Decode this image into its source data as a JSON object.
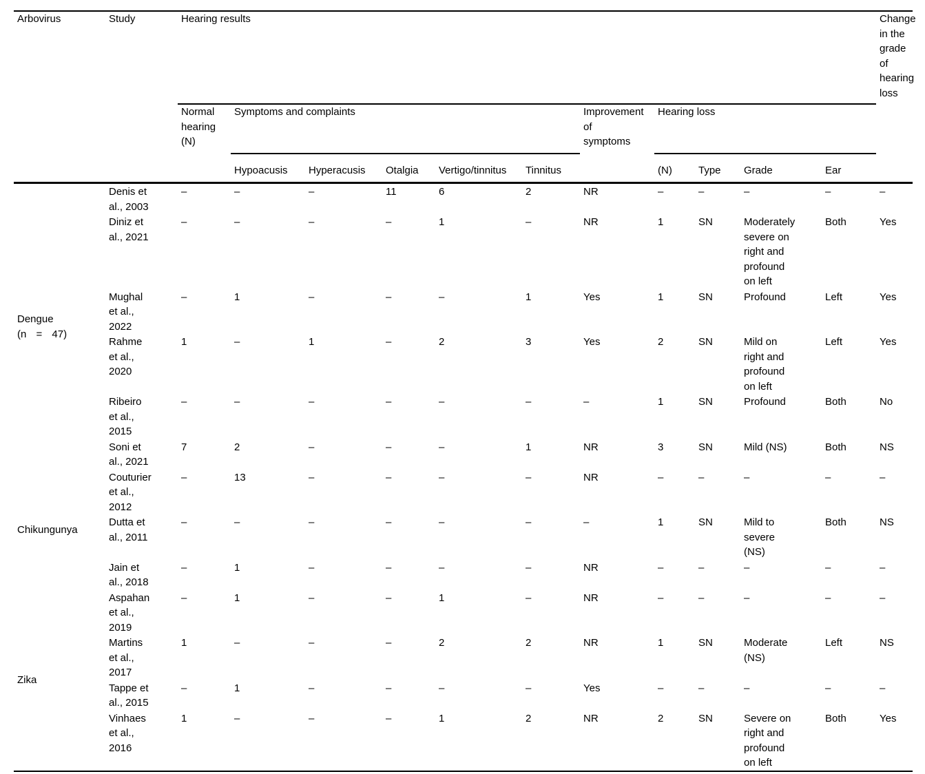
{
  "colors": {
    "text": "#000000",
    "rules": "#000000",
    "background": "#ffffff"
  },
  "table": {
    "header": {
      "arbovirus": "Arbovirus",
      "study": "Study",
      "hearing_results": "Hearing results",
      "change_in_grade": "Change\nin the\ngrade\nof\nhearing\nloss",
      "normal_hearing": "Normal\nhearing\n(N)",
      "symptoms_and_complaints": "Symptoms and complaints",
      "improvement": "Improvement\nof\nsymptoms",
      "hearing_loss": "Hearing loss"
    },
    "symptom_columns": [
      "Hypoacusis",
      "Hyperacusis",
      "Otalgia",
      "Vertigo/tinnitus",
      "Tinnitus"
    ],
    "hearing_loss_columns": [
      "(N)",
      "Type",
      "Grade",
      "Ear"
    ],
    "groups": [
      {
        "name": "Dengue",
        "count": "(n = 47)",
        "rows": [
          {
            "study": "Denis et\nal., 2003",
            "cells": [
              "–",
              "–",
              "–",
              "11",
              "6",
              "2",
              "NR",
              "–",
              "–",
              "–",
              "–",
              "–"
            ]
          },
          {
            "study": "Diniz et\nal., 2021",
            "cells": [
              "–",
              "–",
              "–",
              "–",
              "1",
              "–",
              "NR",
              "1",
              "SN",
              "Moderately\nsevere on\nright and\nprofound\non left",
              "Both",
              "Yes"
            ]
          },
          {
            "study": "Mughal\net al.,\n2022",
            "cells": [
              "–",
              "1",
              "–",
              "–",
              "–",
              "1",
              "Yes",
              "1",
              "SN",
              "Profound",
              "Left",
              "Yes"
            ]
          },
          {
            "study": "Rahme\net al.,\n2020",
            "cells": [
              "1",
              "–",
              "1",
              "–",
              "2",
              "3",
              "Yes",
              "2",
              "SN",
              "Mild on\nright and\nprofound\non left",
              "Left",
              "Yes"
            ]
          },
          {
            "study": "Ribeiro\net al.,\n2015",
            "cells": [
              "–",
              "–",
              "–",
              "–",
              "–",
              "–",
              "–",
              "1",
              "SN",
              "Profound",
              "Both",
              "No"
            ]
          },
          {
            "study": "Soni et\nal., 2021",
            "cells": [
              "7",
              "2",
              "–",
              "–",
              "–",
              "1",
              "NR",
              "3",
              "SN",
              "Mild (NS)",
              "Both",
              "NS"
            ]
          }
        ]
      },
      {
        "name": "Chikungunya",
        "count": "",
        "rows": [
          {
            "study": "Couturier\net al.,\n2012",
            "cells": [
              "–",
              "13",
              "–",
              "–",
              "–",
              "–",
              "NR",
              "–",
              "–",
              "–",
              "–",
              "–"
            ]
          },
          {
            "study": "Dutta et\nal., 2011",
            "cells": [
              "–",
              "–",
              "–",
              "–",
              "–",
              "–",
              "–",
              "1",
              "SN",
              "Mild to\nsevere\n(NS)",
              "Both",
              "NS"
            ]
          },
          {
            "study": "Jain et\nal., 2018",
            "cells": [
              "–",
              "1",
              "–",
              "–",
              "–",
              "–",
              "NR",
              "–",
              "–",
              "–",
              "–",
              "–"
            ]
          }
        ]
      },
      {
        "name": "Zika",
        "count": "",
        "rows": [
          {
            "study": "Aspahan\net al.,\n2019",
            "cells": [
              "–",
              "1",
              "–",
              "–",
              "1",
              "–",
              "NR",
              "–",
              "–",
              "–",
              "–",
              "–"
            ]
          },
          {
            "study": "Martins\net al.,\n2017",
            "cells": [
              "1",
              "–",
              "–",
              "–",
              "2",
              "2",
              "NR",
              "1",
              "SN",
              "Moderate\n(NS)",
              "Left",
              "NS"
            ]
          },
          {
            "study": "Tappe et\nal., 2015",
            "cells": [
              "–",
              "1",
              "–",
              "–",
              "–",
              "–",
              "Yes",
              "–",
              "–",
              "–",
              "–",
              "–"
            ]
          },
          {
            "study": "Vinhaes\net al.,\n2016",
            "cells": [
              "1",
              "–",
              "–",
              "–",
              "1",
              "2",
              "NR",
              "2",
              "SN",
              "Severe on\nright and\nprofound\non left",
              "Both",
              "Yes"
            ]
          }
        ]
      }
    ]
  }
}
